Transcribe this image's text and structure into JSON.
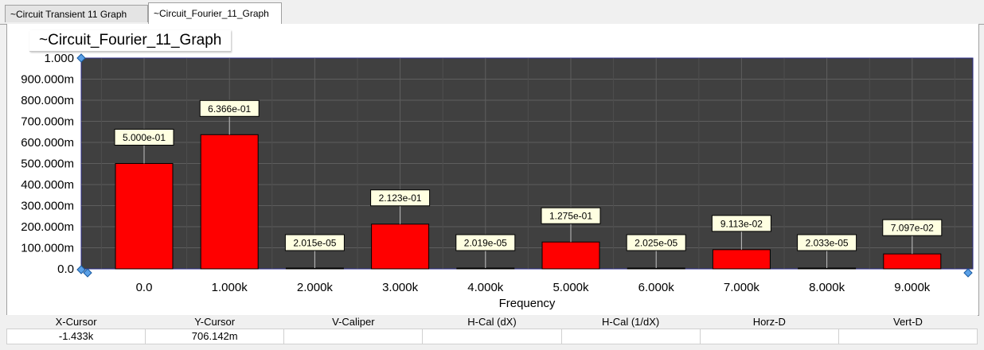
{
  "tabs": [
    {
      "label": "~Circuit  Transient  11  Graph",
      "active": false
    },
    {
      "label": "~Circuit_Fourier_11_Graph",
      "active": true
    }
  ],
  "graph_title": "~Circuit_Fourier_11_Graph",
  "colors": {
    "plot_bg": "#404040",
    "grid": "#5e5e5e",
    "bar_fill": "#ff0000",
    "bar_stroke": "#000000",
    "label_bg": "#ffffe1"
  },
  "chart_data": {
    "type": "bar",
    "title": "~Circuit_Fourier_11_Graph",
    "xlabel": "Frequency",
    "ylabel": "",
    "categories": [
      "0.0",
      "1.000k",
      "2.000k",
      "3.000k",
      "4.000k",
      "5.000k",
      "6.000k",
      "7.000k",
      "8.000k",
      "9.000k"
    ],
    "values": [
      0.5,
      0.6366,
      2.015e-05,
      0.2123,
      2.019e-05,
      0.1275,
      2.025e-05,
      0.09113,
      2.033e-05,
      0.07097
    ],
    "data_labels": [
      "5.000e-01",
      "6.366e-01",
      "2.015e-05",
      "2.123e-01",
      "2.019e-05",
      "1.275e-01",
      "2.025e-05",
      "9.113e-02",
      "2.033e-05",
      "7.097e-02"
    ],
    "ylim": [
      0,
      1
    ],
    "y_ticks": [
      {
        "value": 0,
        "label": "0.0"
      },
      {
        "value": 0.1,
        "label": "100.000m"
      },
      {
        "value": 0.2,
        "label": "200.000m"
      },
      {
        "value": 0.3,
        "label": "300.000m"
      },
      {
        "value": 0.4,
        "label": "400.000m"
      },
      {
        "value": 0.5,
        "label": "500.000m"
      },
      {
        "value": 0.6,
        "label": "600.000m"
      },
      {
        "value": 0.7,
        "label": "700.000m"
      },
      {
        "value": 0.8,
        "label": "800.000m"
      },
      {
        "value": 0.9,
        "label": "900.000m"
      },
      {
        "value": 1.0,
        "label": "1.000"
      }
    ],
    "grid": true
  },
  "status": {
    "headers": [
      "X-Cursor",
      "Y-Cursor",
      "V-Caliper",
      "H-Cal (dX)",
      "H-Cal (1/dX)",
      "Horz-D",
      "Vert-D"
    ],
    "values": [
      "-1.433k",
      "706.142m",
      "",
      "",
      "",
      "",
      ""
    ]
  }
}
